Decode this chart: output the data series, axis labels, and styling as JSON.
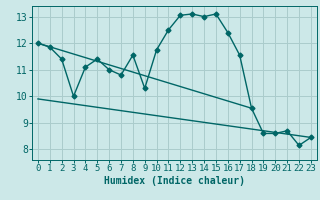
{
  "title": "",
  "xlabel": "Humidex (Indice chaleur)",
  "bg_color": "#cce8e8",
  "grid_color": "#aacccc",
  "line_color": "#006666",
  "x_ticks": [
    0,
    1,
    2,
    3,
    4,
    5,
    6,
    7,
    8,
    9,
    10,
    11,
    12,
    13,
    14,
    15,
    16,
    17,
    18,
    19,
    20,
    21,
    22,
    23
  ],
  "y_ticks": [
    8,
    9,
    10,
    11,
    12,
    13
  ],
  "ylim": [
    7.6,
    13.4
  ],
  "xlim": [
    -0.5,
    23.5
  ],
  "series1_x": [
    0,
    1,
    2,
    3,
    4,
    5,
    6,
    7,
    8,
    9,
    10,
    11,
    12,
    13,
    14,
    15,
    16,
    17,
    18,
    19,
    20,
    21,
    22,
    23
  ],
  "series1_y": [
    12.0,
    11.85,
    11.4,
    10.0,
    11.1,
    11.4,
    11.0,
    10.8,
    11.55,
    10.3,
    11.75,
    12.5,
    13.05,
    13.1,
    13.0,
    13.1,
    12.4,
    11.55,
    9.55,
    8.6,
    8.6,
    8.7,
    8.15,
    8.45
  ],
  "series2_x": [
    0,
    18
  ],
  "series2_y": [
    12.0,
    9.55
  ],
  "series3_x": [
    0,
    23
  ],
  "series3_y": [
    9.9,
    8.45
  ],
  "marker_size": 2.5,
  "line_width": 1.0,
  "font_size": 7,
  "tick_font_size": 6.5
}
